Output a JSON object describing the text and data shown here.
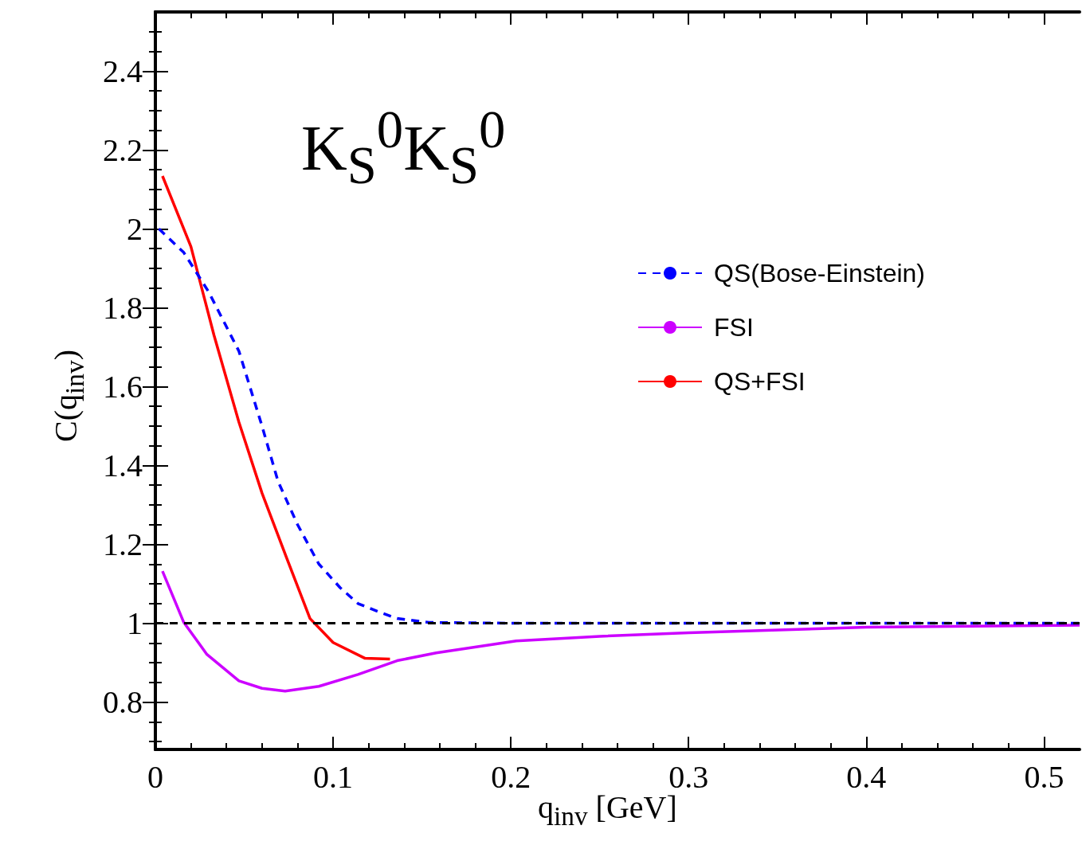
{
  "chart_data": {
    "type": "line",
    "xlabel": "q$_{inv}$ [GeV]",
    "ylabel": "C(q$_{inv}$)",
    "annotations": [
      "K$_{S}$$^{0}$K$_{S}$$^{0}$"
    ],
    "xlim": [
      0,
      0.52
    ],
    "ylim": [
      0.68,
      2.55
    ],
    "xticks": [
      0,
      {
        "value": 0.02,
        "label": null
      },
      {
        "value": 0.04,
        "label": null
      },
      {
        "value": 0.06,
        "label": null
      },
      {
        "value": 0.08,
        "label": null
      },
      0.1,
      {
        "value": 0.12,
        "label": null
      },
      {
        "value": 0.14,
        "label": null
      },
      {
        "value": 0.16,
        "label": null
      },
      {
        "value": 0.18,
        "label": null
      },
      0.2,
      {
        "value": 0.22,
        "label": null
      },
      {
        "value": 0.24,
        "label": null
      },
      {
        "value": 0.26,
        "label": null
      },
      {
        "value": 0.28,
        "label": null
      },
      0.3,
      {
        "value": 0.32,
        "label": null
      },
      {
        "value": 0.34,
        "label": null
      },
      {
        "value": 0.36,
        "label": null
      },
      {
        "value": 0.38,
        "label": null
      },
      0.4,
      {
        "value": 0.42,
        "label": null
      },
      {
        "value": 0.44,
        "label": null
      },
      {
        "value": 0.46,
        "label": null
      },
      {
        "value": 0.48,
        "label": null
      },
      0.5
    ],
    "yticks": [
      {
        "value": 0.7,
        "label": null
      },
      {
        "value": 0.75,
        "label": null
      },
      0.8,
      {
        "value": 0.85,
        "label": null
      },
      {
        "value": 0.9,
        "label": null
      },
      {
        "value": 0.95,
        "label": null
      },
      1,
      {
        "value": 1.05,
        "label": null
      },
      {
        "value": 1.1,
        "label": null
      },
      {
        "value": 1.15,
        "label": null
      },
      1.2,
      {
        "value": 1.25,
        "label": null
      },
      {
        "value": 1.3,
        "label": null
      },
      {
        "value": 1.35,
        "label": null
      },
      1.4,
      {
        "value": 1.45,
        "label": null
      },
      {
        "value": 1.5,
        "label": null
      },
      {
        "value": 1.55,
        "label": null
      },
      1.6,
      {
        "value": 1.65,
        "label": null
      },
      {
        "value": 1.7,
        "label": null
      },
      {
        "value": 1.75,
        "label": null
      },
      1.8,
      {
        "value": 1.85,
        "label": null
      },
      {
        "value": 1.9,
        "label": null
      },
      {
        "value": 1.95,
        "label": null
      },
      2,
      {
        "value": 2.05,
        "label": null
      },
      {
        "value": 2.1,
        "label": null
      },
      {
        "value": 2.15,
        "label": null
      },
      2.2,
      {
        "value": 2.25,
        "label": null
      },
      {
        "value": 2.3,
        "label": null
      },
      {
        "value": 2.35,
        "label": null
      },
      2.4,
      {
        "value": 2.45,
        "label": null
      },
      {
        "value": 2.5,
        "label": null
      }
    ],
    "marker": "none",
    "legend": "top right",
    "ref_lines": [
      {
        "axis": "y",
        "value": 1,
        "color": "#000000",
        "line_style": "dashed"
      }
    ],
    "series": [
      {
        "name": "QS(Bose-Einstein)",
        "color": "#0000ff",
        "line_style": "dashed",
        "x": [
          0.002,
          0.016,
          0.03,
          0.047,
          0.06,
          0.069,
          0.08,
          0.092,
          0.104,
          0.114,
          0.125,
          0.136,
          0.154,
          0.2,
          0.3,
          0.4,
          0.52
        ],
        "values": [
          2.0,
          1.94,
          1.84,
          1.69,
          1.5,
          1.36,
          1.25,
          1.15,
          1.09,
          1.05,
          1.03,
          1.012,
          1.002,
          1.0,
          1.0,
          1.0,
          1.0
        ]
      },
      {
        "name": "FSI",
        "color": "#cc00ff",
        "line_style": "solid",
        "x": [
          0.004,
          0.016,
          0.029,
          0.047,
          0.06,
          0.073,
          0.092,
          0.114,
          0.136,
          0.158,
          0.203,
          0.25,
          0.3,
          0.4,
          0.52
        ],
        "values": [
          1.132,
          1.002,
          0.921,
          0.854,
          0.835,
          0.828,
          0.84,
          0.87,
          0.905,
          0.925,
          0.955,
          0.967,
          0.976,
          0.99,
          0.995
        ]
      },
      {
        "name": "QS+FSI",
        "color": "#ff0000",
        "line_style": "solid",
        "x": [
          0.004,
          0.02,
          0.033,
          0.047,
          0.06,
          0.074,
          0.087,
          0.1,
          0.118,
          0.132
        ],
        "values": [
          2.134,
          1.955,
          1.73,
          1.51,
          1.33,
          1.164,
          1.012,
          0.951,
          0.911,
          0.909
        ]
      }
    ]
  }
}
